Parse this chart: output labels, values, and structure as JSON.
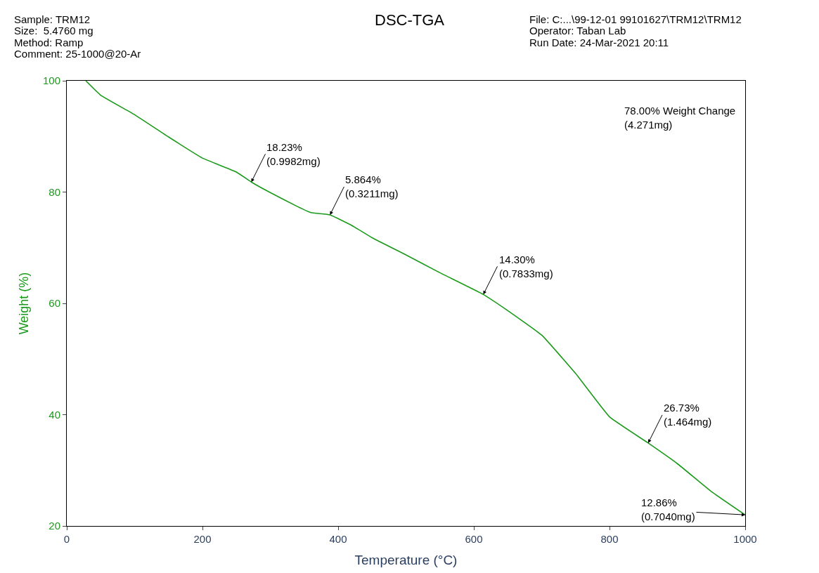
{
  "chart_data": {
    "type": "line",
    "title": "DSC-TGA",
    "xlabel": "Temperature (°C)",
    "ylabel": "Weight (%)",
    "x": [
      28,
      50,
      100,
      150,
      200,
      250,
      272,
      300,
      340,
      360,
      388,
      420,
      450,
      500,
      550,
      614,
      650,
      700,
      750,
      800,
      857,
      900,
      950,
      1000
    ],
    "series": [
      {
        "color": "#1a9a1a",
        "values": [
          100,
          97.4,
          93.9,
          89.9,
          86.1,
          83.6,
          81.8,
          79.9,
          77.4,
          76.3,
          75.9,
          74.0,
          71.8,
          68.7,
          65.5,
          61.6,
          58.7,
          54.3,
          47.4,
          39.6,
          34.9,
          31.2,
          26.2,
          22.0
        ]
      }
    ],
    "xlim": [
      0,
      1000
    ],
    "ylim": [
      20,
      100
    ],
    "xticks": [
      0,
      200,
      400,
      600,
      800,
      1000
    ],
    "yticks": [
      20,
      40,
      60,
      80,
      100
    ],
    "marker": "none",
    "line_style": "solid",
    "annotations": [
      "Sample: TRM12",
      "Size:  5.4760 mg",
      "Method: Ramp",
      "Comment: 25-1000@20-Ar",
      "File: C:...\\99-12-01 99101627\\TRM12\\TRM12",
      "Operator: Taban Lab",
      "Run Date: 24-Mar-2021 20:11",
      {
        "text": "18.23%\n(0.9982mg)",
        "x": 272,
        "y": 81.8
      },
      {
        "text": "5.864%\n(0.3211mg)",
        "x": 388,
        "y": 75.9
      },
      {
        "text": "14.30%\n(0.7833mg)",
        "x": 614,
        "y": 61.6
      },
      {
        "text": "26.73%\n(1.464mg)",
        "x": 857,
        "y": 34.9
      },
      {
        "text": "12.86%\n(0.7040mg)",
        "x": 1000,
        "y": 22.0
      },
      "78.00% Weight Change\n(4.271mg)"
    ]
  }
}
